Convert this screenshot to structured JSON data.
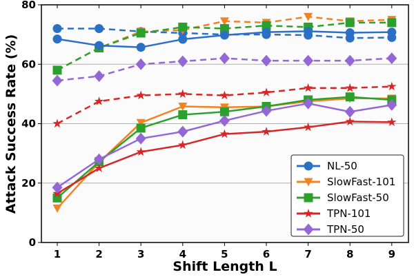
{
  "chart_data": {
    "type": "line",
    "title": "",
    "xlabel": "Shift Length L",
    "ylabel": "Attack Success Rate (%)",
    "x": [
      1,
      2,
      3,
      4,
      5,
      6,
      7,
      8,
      9
    ],
    "xlim": [
      0.62,
      9.4
    ],
    "ylim": [
      0,
      80
    ],
    "xticks": [
      "1",
      "2",
      "3",
      "4",
      "5",
      "6",
      "7",
      "8",
      "9"
    ],
    "yticks": [
      "0",
      "20",
      "40",
      "60",
      "80"
    ],
    "grid": "horizontal",
    "legend_position": "lower-right",
    "series": [
      {
        "name": "NL-50",
        "style": "solid",
        "marker": "circle",
        "color": "#2b70c4",
        "in_legend": true,
        "values": [
          68.5,
          66.3,
          65.7,
          68.4,
          69.8,
          70.8,
          71.1,
          70.6,
          70.8
        ]
      },
      {
        "name": "SlowFast-101",
        "style": "solid",
        "marker": "triangle-down",
        "color": "#f58220",
        "in_legend": true,
        "values": [
          11.5,
          27.0,
          40.3,
          45.8,
          45.5,
          45.8,
          47.5,
          48.5,
          48.5
        ]
      },
      {
        "name": "SlowFast-50",
        "style": "solid",
        "marker": "square",
        "color": "#2ca02c",
        "in_legend": true,
        "values": [
          15.0,
          27.2,
          38.5,
          43.0,
          44.0,
          45.8,
          48.0,
          49.0,
          48.0
        ]
      },
      {
        "name": "TPN-101",
        "style": "solid",
        "marker": "star",
        "color": "#d62728",
        "in_legend": true,
        "values": [
          16.5,
          25.0,
          30.5,
          32.8,
          36.5,
          37.3,
          38.8,
          40.7,
          40.5
        ]
      },
      {
        "name": "TPN-50",
        "style": "solid",
        "marker": "diamond",
        "color": "#9467d6",
        "in_legend": true,
        "values": [
          18.5,
          28.0,
          35.0,
          37.3,
          41.0,
          44.3,
          46.8,
          44.0,
          46.3
        ]
      },
      {
        "name": "NL-50 (dashed)",
        "style": "dashed",
        "marker": "circle",
        "color": "#2b70c4",
        "in_legend": false,
        "values": [
          72.0,
          72.0,
          71.0,
          70.5,
          70.0,
          70.0,
          69.8,
          68.8,
          69.0
        ]
      },
      {
        "name": "SlowFast-101 (dashed)",
        "style": "dashed",
        "marker": "triangle-down",
        "color": "#f58220",
        "in_legend": false,
        "values": [
          58.0,
          65.5,
          71.0,
          71.5,
          74.5,
          74.0,
          76.0,
          74.5,
          75.0
        ]
      },
      {
        "name": "SlowFast-50 (dashed)",
        "style": "dashed",
        "marker": "square",
        "color": "#2ca02c",
        "in_legend": false,
        "values": [
          58.0,
          65.5,
          70.5,
          72.5,
          72.0,
          73.0,
          72.5,
          74.0,
          74.0
        ]
      },
      {
        "name": "TPN-101 (dashed)",
        "style": "dashed",
        "marker": "star",
        "color": "#d62728",
        "in_legend": false,
        "values": [
          40.0,
          47.5,
          49.5,
          50.0,
          49.5,
          50.5,
          52.0,
          52.0,
          52.5
        ]
      },
      {
        "name": "TPN-50 (dashed)",
        "style": "dashed",
        "marker": "diamond",
        "color": "#9467d6",
        "in_legend": false,
        "values": [
          54.5,
          56.0,
          60.0,
          61.0,
          62.0,
          61.2,
          61.2,
          61.2,
          62.0
        ]
      }
    ]
  }
}
